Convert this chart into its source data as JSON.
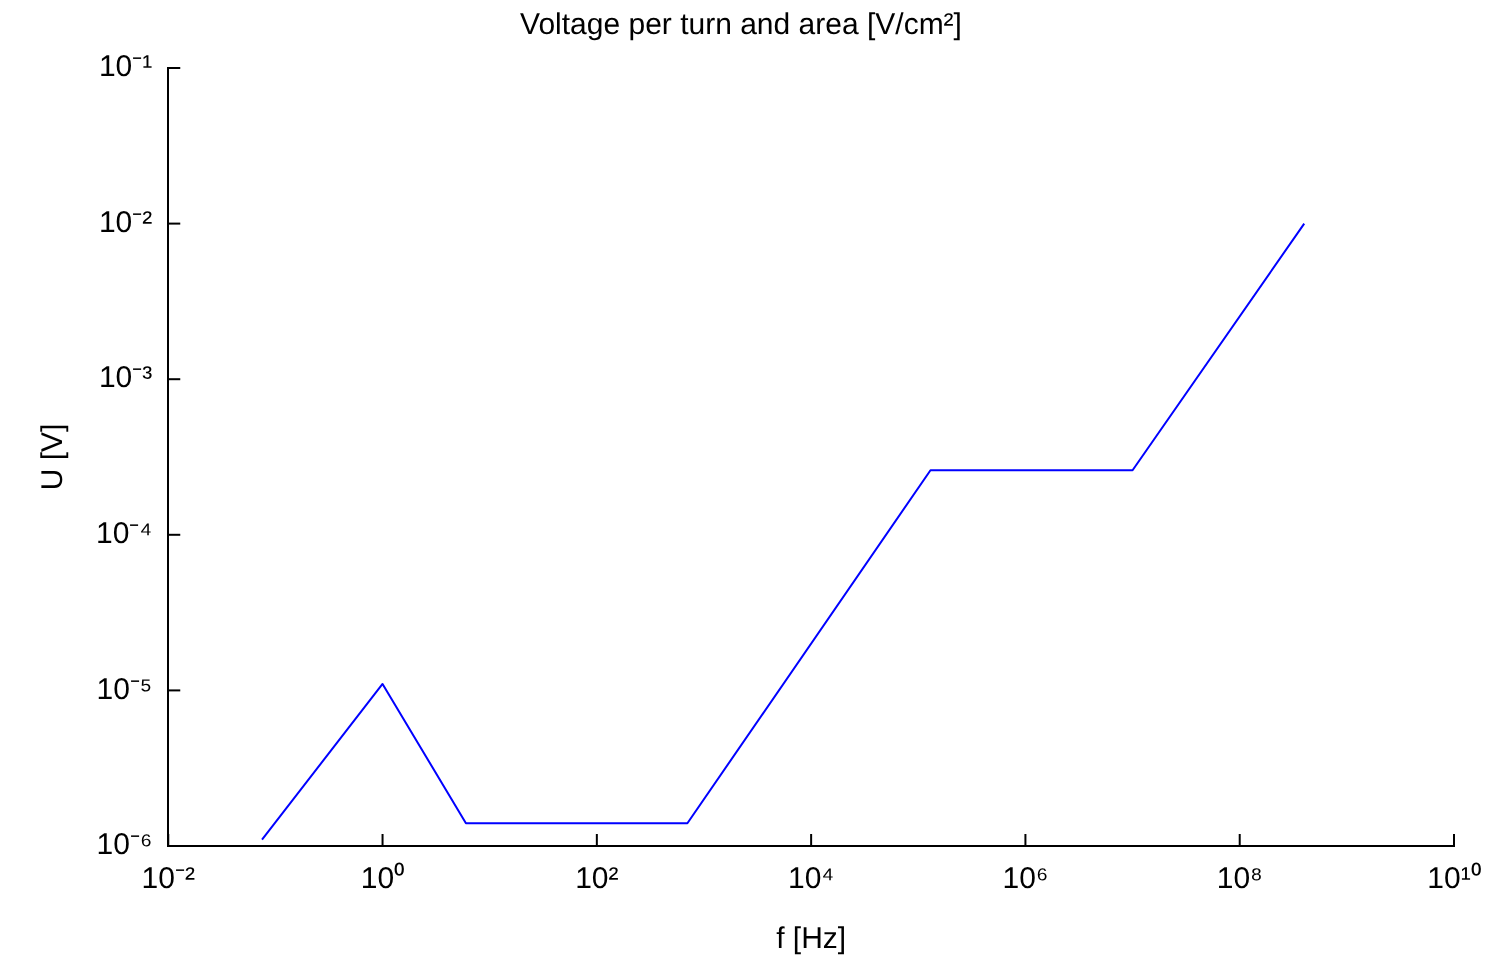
{
  "chart_data": {
    "type": "line",
    "title": "Voltage per turn and area [V/cm²]",
    "xlabel": "f [Hz]",
    "ylabel": "U [V]",
    "log": "xy",
    "grid": false,
    "legend": false,
    "marker": "none",
    "line_style": "solid",
    "x": [
      0.075,
      1,
      6,
      700,
      130000,
      10000000,
      400000000
    ],
    "series": [
      {
        "color": "#0000ff",
        "values": [
          1.1e-06,
          1.1e-05,
          1.4e-06,
          1.4e-06,
          0.00026,
          0.00026,
          0.01
        ]
      }
    ],
    "xlim": [
      0.01,
      10000000000
    ],
    "ylim": [
      1e-06,
      0.1
    ],
    "xticks": [
      {
        "value": 0.01,
        "label": "10⁻²"
      },
      {
        "value": 1,
        "label": "10⁰"
      },
      {
        "value": 100,
        "label": "10²"
      },
      {
        "value": 10000,
        "label": "10⁴"
      },
      {
        "value": 1000000,
        "label": "10⁶"
      },
      {
        "value": 100000000,
        "label": "10⁸"
      },
      {
        "value": 10000000000,
        "label": "10¹⁰"
      }
    ],
    "yticks": [
      {
        "value": 1e-06,
        "label": "10⁻⁶"
      },
      {
        "value": 1e-05,
        "label": "10⁻⁵"
      },
      {
        "value": 0.0001,
        "label": "10⁻⁴"
      },
      {
        "value": 0.001,
        "label": "10⁻³"
      },
      {
        "value": 0.01,
        "label": "10⁻²"
      },
      {
        "value": 0.1,
        "label": "10⁻¹"
      }
    ]
  }
}
